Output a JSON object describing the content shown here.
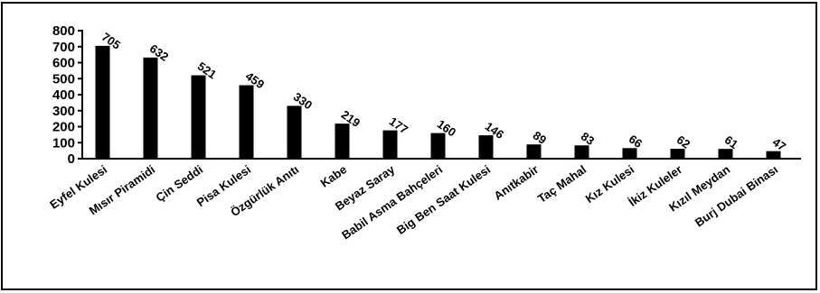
{
  "chart_data": {
    "type": "bar",
    "categories": [
      "Eyfel Kulesi",
      "Mısır Piramidi",
      "Çin Seddi",
      "Pisa Kulesi",
      "Özgürlük Anıtı",
      "Kabe",
      "Beyaz Saray",
      "Babil Asma Bahçeleri",
      "Big Ben Saat Kulesi",
      "Anıtkabir",
      "Taç Mahal",
      "Kız Kulesi",
      "İkiz Kuleler",
      "Kızıl Meydan",
      "Burj Dubai Binası"
    ],
    "values": [
      705,
      632,
      521,
      459,
      330,
      219,
      177,
      160,
      146,
      89,
      83,
      66,
      62,
      61,
      47
    ],
    "value_labels": [
      "705",
      "632",
      "521",
      "459",
      "330",
      "219",
      "177",
      "160",
      "146",
      "89",
      "83",
      "66",
      "62",
      "61",
      "47"
    ],
    "yticks": [
      "0",
      "100",
      "200",
      "300",
      "400",
      "500",
      "600",
      "700",
      "800"
    ],
    "ylim": [
      0,
      800
    ],
    "title": "",
    "xlabel": "",
    "ylabel": "",
    "bar_color": "#000000",
    "grid": false,
    "legend": "none"
  }
}
